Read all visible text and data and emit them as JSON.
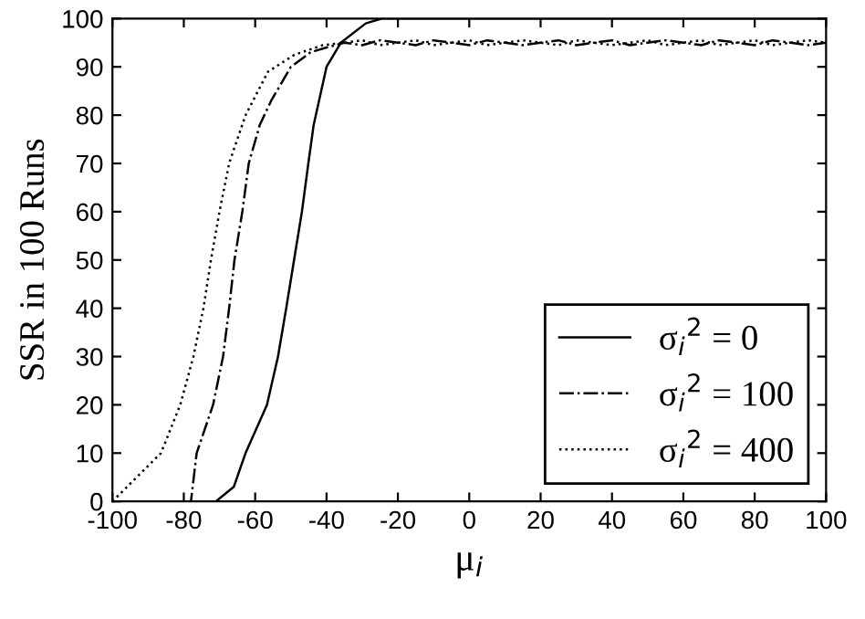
{
  "chart_data": {
    "type": "line",
    "xlabel": "μ$_{i}$",
    "ylabel": "SSR in 100 Runs",
    "xlim": [
      -100,
      100
    ],
    "ylim": [
      0,
      100
    ],
    "xticks": [
      -100,
      -80,
      -60,
      -40,
      -20,
      0,
      20,
      40,
      60,
      80,
      100
    ],
    "yticks": [
      0,
      10,
      20,
      30,
      40,
      50,
      60,
      70,
      80,
      90,
      100
    ],
    "grid": false,
    "legend": "bottom right",
    "marker": "none",
    "series": [
      {
        "name": "σ$_{i}$$^{2}$ = 0",
        "color": "#000000",
        "line_style": "solid",
        "x": [
          -100,
          -71,
          -66,
          -62.7,
          -56.7,
          -53.6,
          -51.3,
          -49.1,
          -46.9,
          -45.1,
          -43.6,
          -40,
          -36,
          -29,
          -24.5,
          -20,
          0,
          20,
          40,
          60,
          80,
          100
        ],
        "values": [
          0,
          0,
          3,
          10,
          20,
          30,
          40,
          50,
          60,
          70,
          78,
          90,
          95,
          99,
          100,
          100,
          100,
          100,
          100,
          100,
          100,
          100
        ]
      },
      {
        "name": "σ$_{i}$$^{2}$ = 100",
        "color": "#000000",
        "line_style": "dashdot",
        "x": [
          -100,
          -78,
          -76.4,
          -71.8,
          -69,
          -67.3,
          -65.8,
          -63.6,
          -61.8,
          -58.7,
          -55.5,
          -50,
          -44.5,
          -40,
          -35,
          -30,
          -25,
          -20,
          -15,
          -10,
          -5,
          0,
          5,
          10,
          15,
          20,
          25,
          30,
          35,
          40,
          45,
          50,
          55,
          60,
          65,
          70,
          75,
          80,
          85,
          90,
          95,
          100
        ],
        "values": [
          0,
          0,
          10,
          20,
          30,
          40,
          50,
          60,
          70,
          78,
          83,
          90,
          93,
          94,
          95,
          94.5,
          95.5,
          95,
          94.5,
          95.5,
          95,
          94.5,
          95.5,
          95,
          94.5,
          95,
          95.5,
          94.5,
          95,
          95.5,
          94.5,
          95,
          95.5,
          95,
          94.5,
          95.5,
          95,
          94.5,
          95.5,
          95,
          94.5,
          95
        ]
      },
      {
        "name": "σ$_{i}$$^{2}$ = 400",
        "color": "#000000",
        "line_style": "dotted",
        "x": [
          -100,
          -86.4,
          -81,
          -77.3,
          -74.5,
          -72.4,
          -70,
          -67.3,
          -62.7,
          -56.4,
          -49,
          -41,
          -35,
          -30,
          -25,
          -20,
          -15,
          -10,
          -5,
          0,
          5,
          10,
          15,
          20,
          25,
          30,
          35,
          40,
          45,
          50,
          55,
          60,
          65,
          70,
          75,
          80,
          85,
          90,
          95,
          100
        ],
        "values": [
          0,
          10,
          20,
          30,
          40,
          50,
          60,
          70,
          80,
          89,
          92.5,
          94.5,
          95,
          95.5,
          94.5,
          95,
          95.5,
          94.5,
          95,
          95.5,
          94.5,
          95,
          95.5,
          95,
          94.5,
          95.5,
          95,
          94.5,
          95,
          95.5,
          94.5,
          95,
          95.5,
          94.5,
          95,
          95.5,
          94.5,
          95,
          95.5,
          95
        ]
      }
    ]
  }
}
